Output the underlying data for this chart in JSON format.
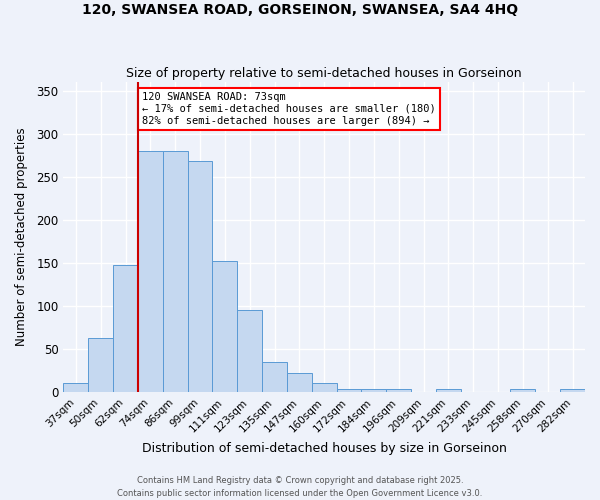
{
  "title1": "120, SWANSEA ROAD, GORSEINON, SWANSEA, SA4 4HQ",
  "title2": "Size of property relative to semi-detached houses in Gorseinon",
  "xlabel": "Distribution of semi-detached houses by size in Gorseinon",
  "ylabel": "Number of semi-detached properties",
  "categories": [
    "37sqm",
    "50sqm",
    "62sqm",
    "74sqm",
    "86sqm",
    "99sqm",
    "111sqm",
    "123sqm",
    "135sqm",
    "147sqm",
    "160sqm",
    "172sqm",
    "184sqm",
    "196sqm",
    "209sqm",
    "221sqm",
    "233sqm",
    "245sqm",
    "258sqm",
    "270sqm",
    "282sqm"
  ],
  "values": [
    10,
    63,
    148,
    280,
    280,
    268,
    152,
    95,
    35,
    22,
    10,
    4,
    3,
    3,
    0,
    3,
    0,
    0,
    3,
    0,
    3
  ],
  "bar_color": "#c5d8f0",
  "bar_edge_color": "#5a9ad5",
  "red_line_x": 2.5,
  "annotation_text": "120 SWANSEA ROAD: 73sqm\n← 17% of semi-detached houses are smaller (180)\n82% of semi-detached houses are larger (894) →",
  "annotation_box_color": "white",
  "annotation_box_edge_color": "red",
  "red_line_color": "#cc0000",
  "ylim": [
    0,
    360
  ],
  "yticks": [
    0,
    50,
    100,
    150,
    200,
    250,
    300,
    350
  ],
  "footer1": "Contains HM Land Registry data © Crown copyright and database right 2025.",
  "footer2": "Contains public sector information licensed under the Open Government Licence v3.0.",
  "bg_color": "#eef2fa",
  "grid_color": "white"
}
